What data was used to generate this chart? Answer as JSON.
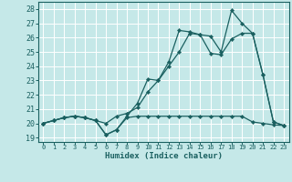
{
  "xlabel": "Humidex (Indice chaleur)",
  "bg_color": "#c5e8e8",
  "line_color": "#1a6060",
  "grid_color": "#ffffff",
  "xlim": [
    -0.5,
    23.5
  ],
  "ylim": [
    18.7,
    28.5
  ],
  "xticks": [
    0,
    1,
    2,
    3,
    4,
    5,
    6,
    7,
    8,
    9,
    10,
    11,
    12,
    13,
    14,
    15,
    16,
    17,
    18,
    19,
    20,
    21,
    22,
    23
  ],
  "yticks": [
    19,
    20,
    21,
    22,
    23,
    24,
    25,
    26,
    27,
    28
  ],
  "series": [
    {
      "x": [
        0,
        1,
        2,
        3,
        4,
        5,
        6,
        7,
        8,
        9,
        10,
        11,
        12,
        13,
        14,
        15,
        16,
        17,
        18,
        19,
        20,
        21,
        22,
        23
      ],
      "y": [
        20.0,
        20.2,
        20.4,
        20.5,
        20.4,
        20.2,
        19.2,
        19.55,
        20.4,
        20.5,
        20.5,
        20.5,
        20.5,
        20.5,
        20.5,
        20.5,
        20.5,
        20.5,
        20.5,
        20.5,
        20.1,
        20.0,
        19.9,
        19.85
      ]
    },
    {
      "x": [
        0,
        1,
        2,
        3,
        4,
        5,
        6,
        7,
        8,
        9,
        10,
        11,
        12,
        13,
        14,
        15,
        16,
        17,
        18,
        19,
        20,
        21,
        22,
        23
      ],
      "y": [
        20.0,
        20.2,
        20.4,
        20.5,
        20.4,
        20.2,
        20.0,
        20.5,
        20.7,
        21.1,
        22.2,
        23.0,
        24.0,
        25.0,
        26.3,
        26.2,
        24.9,
        24.8,
        25.9,
        26.3,
        26.3,
        23.4,
        20.1,
        19.85
      ]
    },
    {
      "x": [
        0,
        1,
        2,
        3,
        4,
        5,
        6,
        7,
        8,
        9,
        10,
        11,
        12,
        13,
        14,
        15,
        16,
        17,
        18,
        19,
        20,
        21,
        22,
        23
      ],
      "y": [
        20.0,
        20.2,
        20.4,
        20.5,
        20.4,
        20.2,
        19.2,
        19.55,
        20.5,
        21.4,
        23.1,
        23.0,
        24.3,
        26.5,
        26.4,
        26.2,
        26.1,
        25.0,
        27.9,
        27.0,
        26.3,
        23.4,
        20.1,
        19.85
      ]
    }
  ]
}
